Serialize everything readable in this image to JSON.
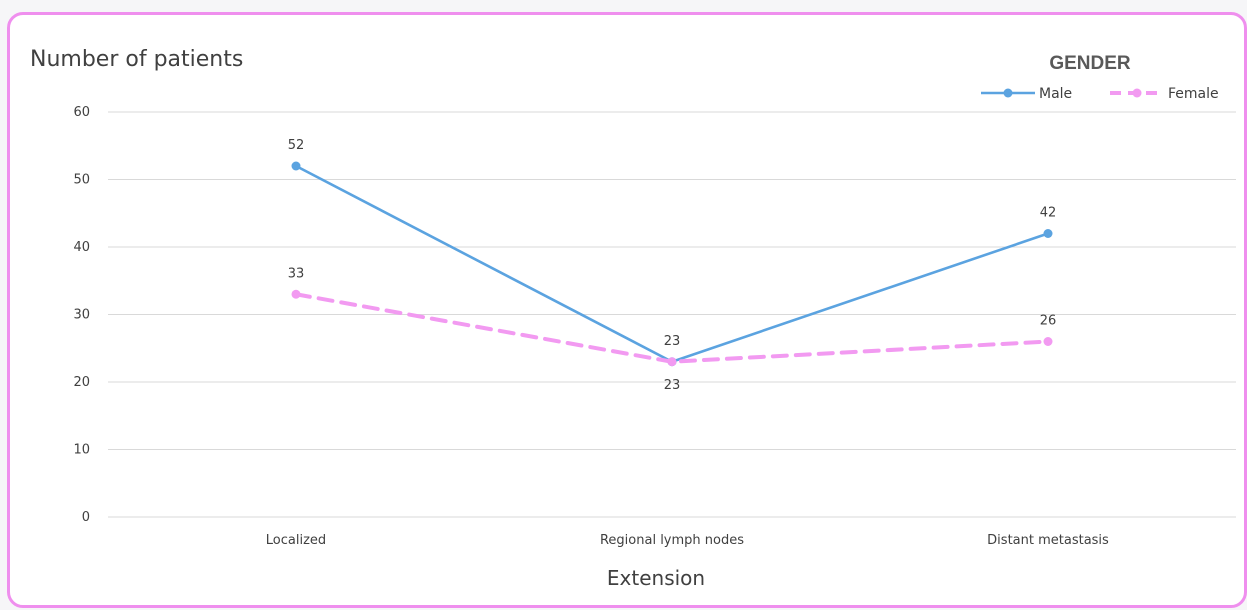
{
  "chart_data": {
    "type": "line",
    "ylabel": "Number of patients",
    "xlabel": "Extension",
    "legend_title": "GENDER",
    "legend_position": "top-right",
    "categories": [
      "Localized",
      "Regional lymph nodes",
      "Distant metastasis"
    ],
    "ylim": [
      0,
      60
    ],
    "yticks": [
      0,
      10,
      20,
      30,
      40,
      50,
      60
    ],
    "grid": true,
    "series": [
      {
        "name": "Male",
        "values": [
          52,
          23,
          42
        ],
        "color": "#5ba3e0",
        "dash": "solid"
      },
      {
        "name": "Female",
        "values": [
          33,
          23,
          26
        ],
        "color": "#f29af1",
        "dash": "dashed"
      }
    ]
  },
  "colors": {
    "frame": "#ef8fee",
    "grid": "#d9d9d9",
    "text": "#404040"
  }
}
